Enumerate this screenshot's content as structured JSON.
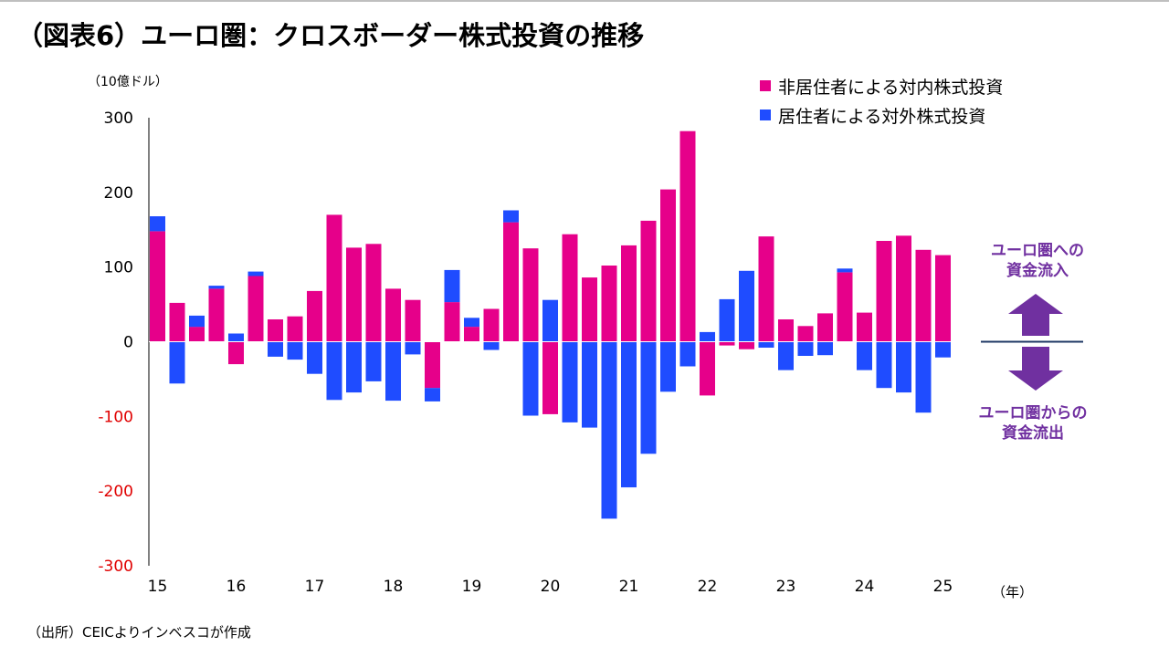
{
  "title": "（図表6）ユーロ圏：クロスボーダー株式投資の推移",
  "unit_label": "（10億ドル）",
  "year_label": "（年）",
  "source": "（出所）CEICよりインベスコが作成",
  "flows": {
    "inflow_line1": "ユーロ圏への",
    "inflow_line2": "資金流入",
    "outflow_line1": "ユーロ圏からの",
    "outflow_line2": "資金流出",
    "color": "#7030a0",
    "line_color": "#1f3864"
  },
  "chart_data": {
    "type": "bar",
    "title": "（図表6）ユーロ圏：クロスボーダー株式投資の推移",
    "ylabel": "（10億ドル）",
    "xlabel": "（年）",
    "ylim": [
      -300,
      300
    ],
    "yticks": [
      300,
      200,
      100,
      0,
      -100,
      -200,
      -300
    ],
    "xtick_labels": [
      "15",
      "16",
      "17",
      "18",
      "19",
      "20",
      "21",
      "22",
      "23",
      "24",
      "25"
    ],
    "xtick_indices": [
      0,
      4,
      8,
      12,
      16,
      20,
      24,
      28,
      32,
      36,
      40
    ],
    "legend_position": "top-right",
    "series": [
      {
        "name": "非居住者による対内株式投資",
        "color": "#e6008a",
        "values": [
          148,
          52,
          20,
          71,
          -30,
          88,
          30,
          34,
          68,
          170,
          126,
          131,
          71,
          56,
          -62,
          53,
          20,
          44,
          160,
          125,
          -97,
          144,
          86,
          102,
          129,
          162,
          204,
          282,
          -72,
          -5,
          -10,
          141,
          30,
          21,
          38,
          93,
          39,
          135,
          142,
          123,
          116
        ]
      },
      {
        "name": "居住者による対外株式投資",
        "color": "#1f4cff",
        "values": [
          20,
          -56,
          15,
          4,
          11,
          6,
          -20,
          -24,
          -43,
          -78,
          -68,
          -53,
          -79,
          -17,
          -18,
          43,
          12,
          -11,
          16,
          -99,
          56,
          -108,
          -115,
          -237,
          -195,
          -150,
          -67,
          -33,
          13,
          57,
          95,
          -8,
          -38,
          -19,
          -18,
          5,
          -38,
          -62,
          -68,
          -95,
          -21
        ]
      }
    ]
  }
}
